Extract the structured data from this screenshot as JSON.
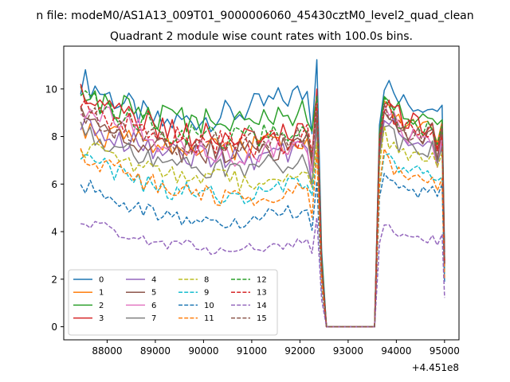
{
  "chart_data": {
    "type": "line",
    "suptitle": "n file: modeM0/AS1A13_009T01_9000006060_45430cztM0_level2_quad_clean",
    "title": "Quadrant 2 module wise count rates with 100.0s bins.",
    "xlabel": "",
    "ylabel": "",
    "x_offset_label": "+4.451e8",
    "xlim": [
      87100,
      95300
    ],
    "ylim": [
      -0.55,
      11.8
    ],
    "x_ticks": [
      88000,
      89000,
      90000,
      91000,
      92000,
      93000,
      94000,
      95000
    ],
    "x_tick_labels": [
      "88000",
      "89000",
      "90000",
      "91000",
      "92000",
      "93000",
      "94000",
      "95000"
    ],
    "y_ticks": [
      0,
      2,
      4,
      6,
      8,
      10
    ],
    "y_tick_labels": [
      "0",
      "2",
      "4",
      "6",
      "8",
      "10"
    ],
    "legend_position": "lower-left",
    "legend_columns": 4,
    "segments": {
      "early_start": 87450,
      "early_end": 92350,
      "drop_end": 92550,
      "gap_end": 93550,
      "late_start": 93650,
      "late_end": 94950,
      "step": 100
    },
    "series": [
      {
        "name": "0",
        "color": "#1f77b4",
        "dash": "solid",
        "early": [
          10.4,
          8.5,
          9.0,
          10.0
        ],
        "late": [
          10.6,
          9.4,
          9.3,
          9.8
        ]
      },
      {
        "name": "1",
        "color": "#ff7f0e",
        "dash": "solid",
        "early": [
          8.2,
          7.6,
          7.5,
          7.8
        ],
        "late": [
          9.8,
          8.5,
          8.4,
          8.6
        ]
      },
      {
        "name": "2",
        "color": "#2ca02c",
        "dash": "solid",
        "early": [
          9.6,
          8.8,
          8.6,
          9.2
        ],
        "late": [
          10.2,
          9.0,
          8.8,
          9.0
        ]
      },
      {
        "name": "3",
        "color": "#d62728",
        "dash": "solid",
        "early": [
          9.8,
          8.3,
          7.8,
          8.3
        ],
        "late": [
          10.0,
          8.8,
          8.4,
          8.5
        ]
      },
      {
        "name": "4",
        "color": "#9467bd",
        "dash": "solid",
        "early": [
          8.6,
          7.3,
          7.0,
          7.5
        ],
        "late": [
          9.2,
          8.0,
          7.8,
          8.0
        ]
      },
      {
        "name": "5",
        "color": "#8c564b",
        "dash": "solid",
        "early": [
          8.8,
          7.5,
          7.3,
          7.7
        ],
        "late": [
          9.4,
          8.3,
          8.0,
          8.2
        ]
      },
      {
        "name": "6",
        "color": "#e377c2",
        "dash": "solid",
        "early": [
          9.4,
          7.8,
          7.2,
          7.6
        ],
        "late": [
          9.6,
          8.2,
          7.9,
          8.0
        ]
      },
      {
        "name": "7",
        "color": "#7f7f7f",
        "dash": "solid",
        "early": [
          8.3,
          6.8,
          6.6,
          7.0
        ],
        "late": [
          9.0,
          7.6,
          7.4,
          7.5
        ]
      },
      {
        "name": "8",
        "color": "#bcbd22",
        "dash": "dashed",
        "early": [
          7.6,
          6.4,
          6.1,
          6.6
        ],
        "late": [
          8.4,
          7.2,
          7.0,
          7.2
        ]
      },
      {
        "name": "9",
        "color": "#17becf",
        "dash": "dashed",
        "early": [
          7.1,
          5.8,
          5.5,
          6.1
        ],
        "late": [
          7.3,
          6.6,
          6.4,
          6.6
        ]
      },
      {
        "name": "10",
        "color": "#1f77b4",
        "dash": "dashed",
        "early": [
          6.0,
          4.6,
          4.4,
          5.0
        ],
        "late": [
          6.8,
          5.8,
          5.6,
          5.8
        ]
      },
      {
        "name": "11",
        "color": "#ff7f0e",
        "dash": "dashed",
        "early": [
          7.2,
          5.9,
          5.3,
          5.9
        ],
        "late": [
          7.4,
          6.4,
          6.2,
          6.3
        ]
      },
      {
        "name": "12",
        "color": "#2ca02c",
        "dash": "dashed",
        "early": [
          9.5,
          8.3,
          7.9,
          8.4
        ],
        "late": [
          9.8,
          8.6,
          8.4,
          8.5
        ]
      },
      {
        "name": "13",
        "color": "#d62728",
        "dash": "dashed",
        "early": [
          9.2,
          8.1,
          7.6,
          8.0
        ],
        "late": [
          9.7,
          8.4,
          8.2,
          8.3
        ]
      },
      {
        "name": "14",
        "color": "#9467bd",
        "dash": "dashed",
        "early": [
          4.5,
          3.5,
          3.2,
          3.6
        ],
        "late": [
          4.4,
          3.8,
          3.7,
          3.8
        ]
      },
      {
        "name": "15",
        "color": "#8c564b",
        "dash": "dashed",
        "early": [
          8.9,
          7.8,
          7.6,
          8.2
        ],
        "late": [
          9.5,
          8.2,
          8.0,
          8.3
        ]
      }
    ]
  }
}
